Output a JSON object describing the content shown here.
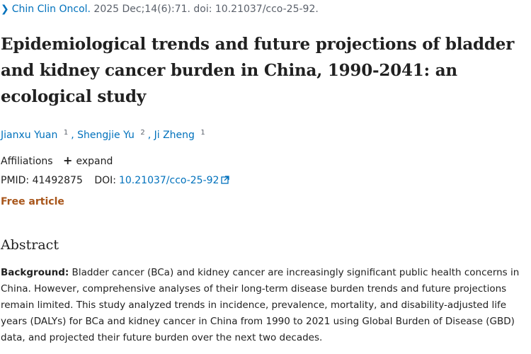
{
  "citation": {
    "journal": "Chin Clin Oncol.",
    "details": " 2025 Dec;14(6):71. doi: 10.21037/cco-25-92."
  },
  "title": "Epidemiological trends and future projections of bladder and kidney cancer burden in China, 1990-2041: an ecological study",
  "authors": [
    {
      "name": "Jianxu Yuan",
      "affiliation": "1"
    },
    {
      "name": "Shengjie Yu",
      "affiliation": "2"
    },
    {
      "name": "Ji Zheng",
      "affiliation": "1"
    }
  ],
  "author_separator": ",",
  "affiliations": {
    "label": "Affiliations",
    "expand_label": "expand"
  },
  "identifiers": {
    "pmid_label": "PMID:",
    "pmid": "41492875",
    "doi_label": "DOI:",
    "doi": "10.21037/cco-25-92"
  },
  "free_article": "Free article",
  "abstract": {
    "heading": "Abstract",
    "background_label": "Background:",
    "background_text": " Bladder cancer (BCa) and kidney cancer are increasingly significant public health concerns in China. However, comprehensive analyses of their long-term disease burden trends and future projections remain limited. This study analyzed trends in incidence, prevalence, mortality, and disability-adjusted life years (DALYs) for BCa and kidney cancer in China from 1990 to 2021 using Global Burden of Disease (GBD) data, and projected their future burden over the next two decades."
  },
  "icons": {
    "breadcrumb": "chevron-right-icon",
    "expand": "plus-icon",
    "external": "external-link-icon"
  },
  "colors": {
    "link": "#0071bc",
    "free_article": "#a8561b",
    "text": "#212121"
  }
}
